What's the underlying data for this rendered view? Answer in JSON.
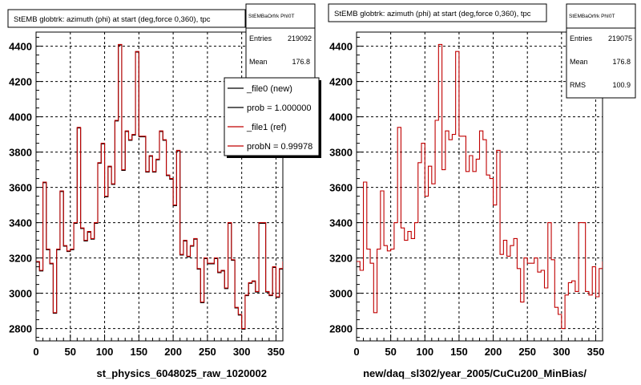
{
  "chart_data": [
    {
      "type": "histogram",
      "title": "StEMB globtrk: azimuth (phi) at start (deg,force 0,360), tpc",
      "xlabel": "st_physics_6048025_raw_1020002",
      "xlim": [
        0,
        360
      ],
      "ylim": [
        2730,
        4480
      ],
      "xticks": [
        0,
        50,
        100,
        150,
        200,
        250,
        300,
        350
      ],
      "yticks": [
        2800,
        3000,
        3200,
        3400,
        3600,
        3800,
        4000,
        4200,
        4400
      ],
      "xtick_labels": [
        "0",
        "50",
        "100",
        "150",
        "200",
        "250",
        "300",
        "350"
      ],
      "ytick_labels": [
        "2800",
        "3000",
        "3200",
        "3400",
        "3600",
        "3800",
        "4000",
        "4200",
        "4400"
      ],
      "grid": true,
      "bin_width": 5,
      "values": [
        3180,
        3130,
        3630,
        3250,
        3170,
        2890,
        3250,
        3580,
        3270,
        3240,
        3250,
        3400,
        3940,
        3370,
        3300,
        3350,
        3310,
        3400,
        3740,
        3850,
        3550,
        3720,
        3620,
        3980,
        4410,
        3700,
        3920,
        3870,
        3900,
        4370,
        3890,
        3890,
        3690,
        3780,
        3690,
        3760,
        3920,
        3870,
        3670,
        3650,
        3500,
        3810,
        3220,
        3300,
        3210,
        3270,
        3310,
        3140,
        2950,
        3200,
        3170,
        3170,
        3200,
        3120,
        3130,
        3030,
        3400,
        3190,
        2920,
        2880,
        2800,
        2990,
        3060,
        3070,
        3010,
        3400,
        3400,
        3010,
        2990,
        3150,
        2980,
        3140,
        3180
      ],
      "series": [
        {
          "name": "_file0 (new)",
          "color": "#000000"
        },
        {
          "name": "_file1 (ref)",
          "color": "#c00000"
        }
      ],
      "stats": {
        "name": "StEMBaOrfrk PhI0T",
        "entries_label": "Entries",
        "entries": "219092",
        "mean_label": "Mean",
        "mean": "176.8"
      },
      "legend": {
        "placement": "top-right",
        "entries": [
          {
            "label": "_file0 (new)",
            "color": "#000000"
          },
          {
            "label": "prob = 1.000000",
            "color": "#000000"
          },
          {
            "label": "_file1 (ref)",
            "color": "#c00000"
          },
          {
            "label": "probN = 0.99978",
            "color": "#c00000"
          }
        ]
      }
    },
    {
      "type": "histogram",
      "title": "StEMB globtrk: azimuth (phi) at start (deg,force 0,360), tpc",
      "xlabel": "new/daq_sl302/year_2005/CuCu200_MinBias/",
      "xlim": [
        0,
        360
      ],
      "ylim": [
        2730,
        4480
      ],
      "xticks": [
        0,
        50,
        100,
        150,
        200,
        250,
        300,
        350
      ],
      "yticks": [
        2800,
        3000,
        3200,
        3400,
        3600,
        3800,
        4000,
        4200,
        4400
      ],
      "xtick_labels": [
        "0",
        "50",
        "100",
        "150",
        "200",
        "250",
        "300",
        "350"
      ],
      "ytick_labels": [
        "2800",
        "3000",
        "3200",
        "3400",
        "3600",
        "3800",
        "4000",
        "4200",
        "4400"
      ],
      "grid": true,
      "bin_width": 5,
      "values": [
        3180,
        3130,
        3630,
        3250,
        3170,
        2890,
        3250,
        3580,
        3270,
        3240,
        3250,
        3400,
        3940,
        3370,
        3300,
        3350,
        3310,
        3400,
        3740,
        3850,
        3550,
        3720,
        3620,
        3980,
        4410,
        3700,
        3920,
        3870,
        3900,
        4370,
        3890,
        3890,
        3690,
        3780,
        3690,
        3760,
        3920,
        3870,
        3670,
        3650,
        3500,
        3810,
        3220,
        3300,
        3210,
        3270,
        3310,
        3140,
        2950,
        3200,
        3170,
        3170,
        3200,
        3120,
        3130,
        3030,
        3400,
        3190,
        2920,
        2880,
        2800,
        2990,
        3060,
        3070,
        3010,
        3400,
        3400,
        3010,
        2990,
        3150,
        2980,
        3140,
        3180
      ],
      "series": [
        {
          "name": "",
          "color": "#c00000"
        }
      ],
      "stats": {
        "name": "StEMBaOrfrk PhI0T",
        "entries_label": "Entries",
        "entries": "219075",
        "mean_label": "Mean",
        "mean": "176.8",
        "rms_label": "RMS",
        "rms": "100.9"
      }
    }
  ]
}
